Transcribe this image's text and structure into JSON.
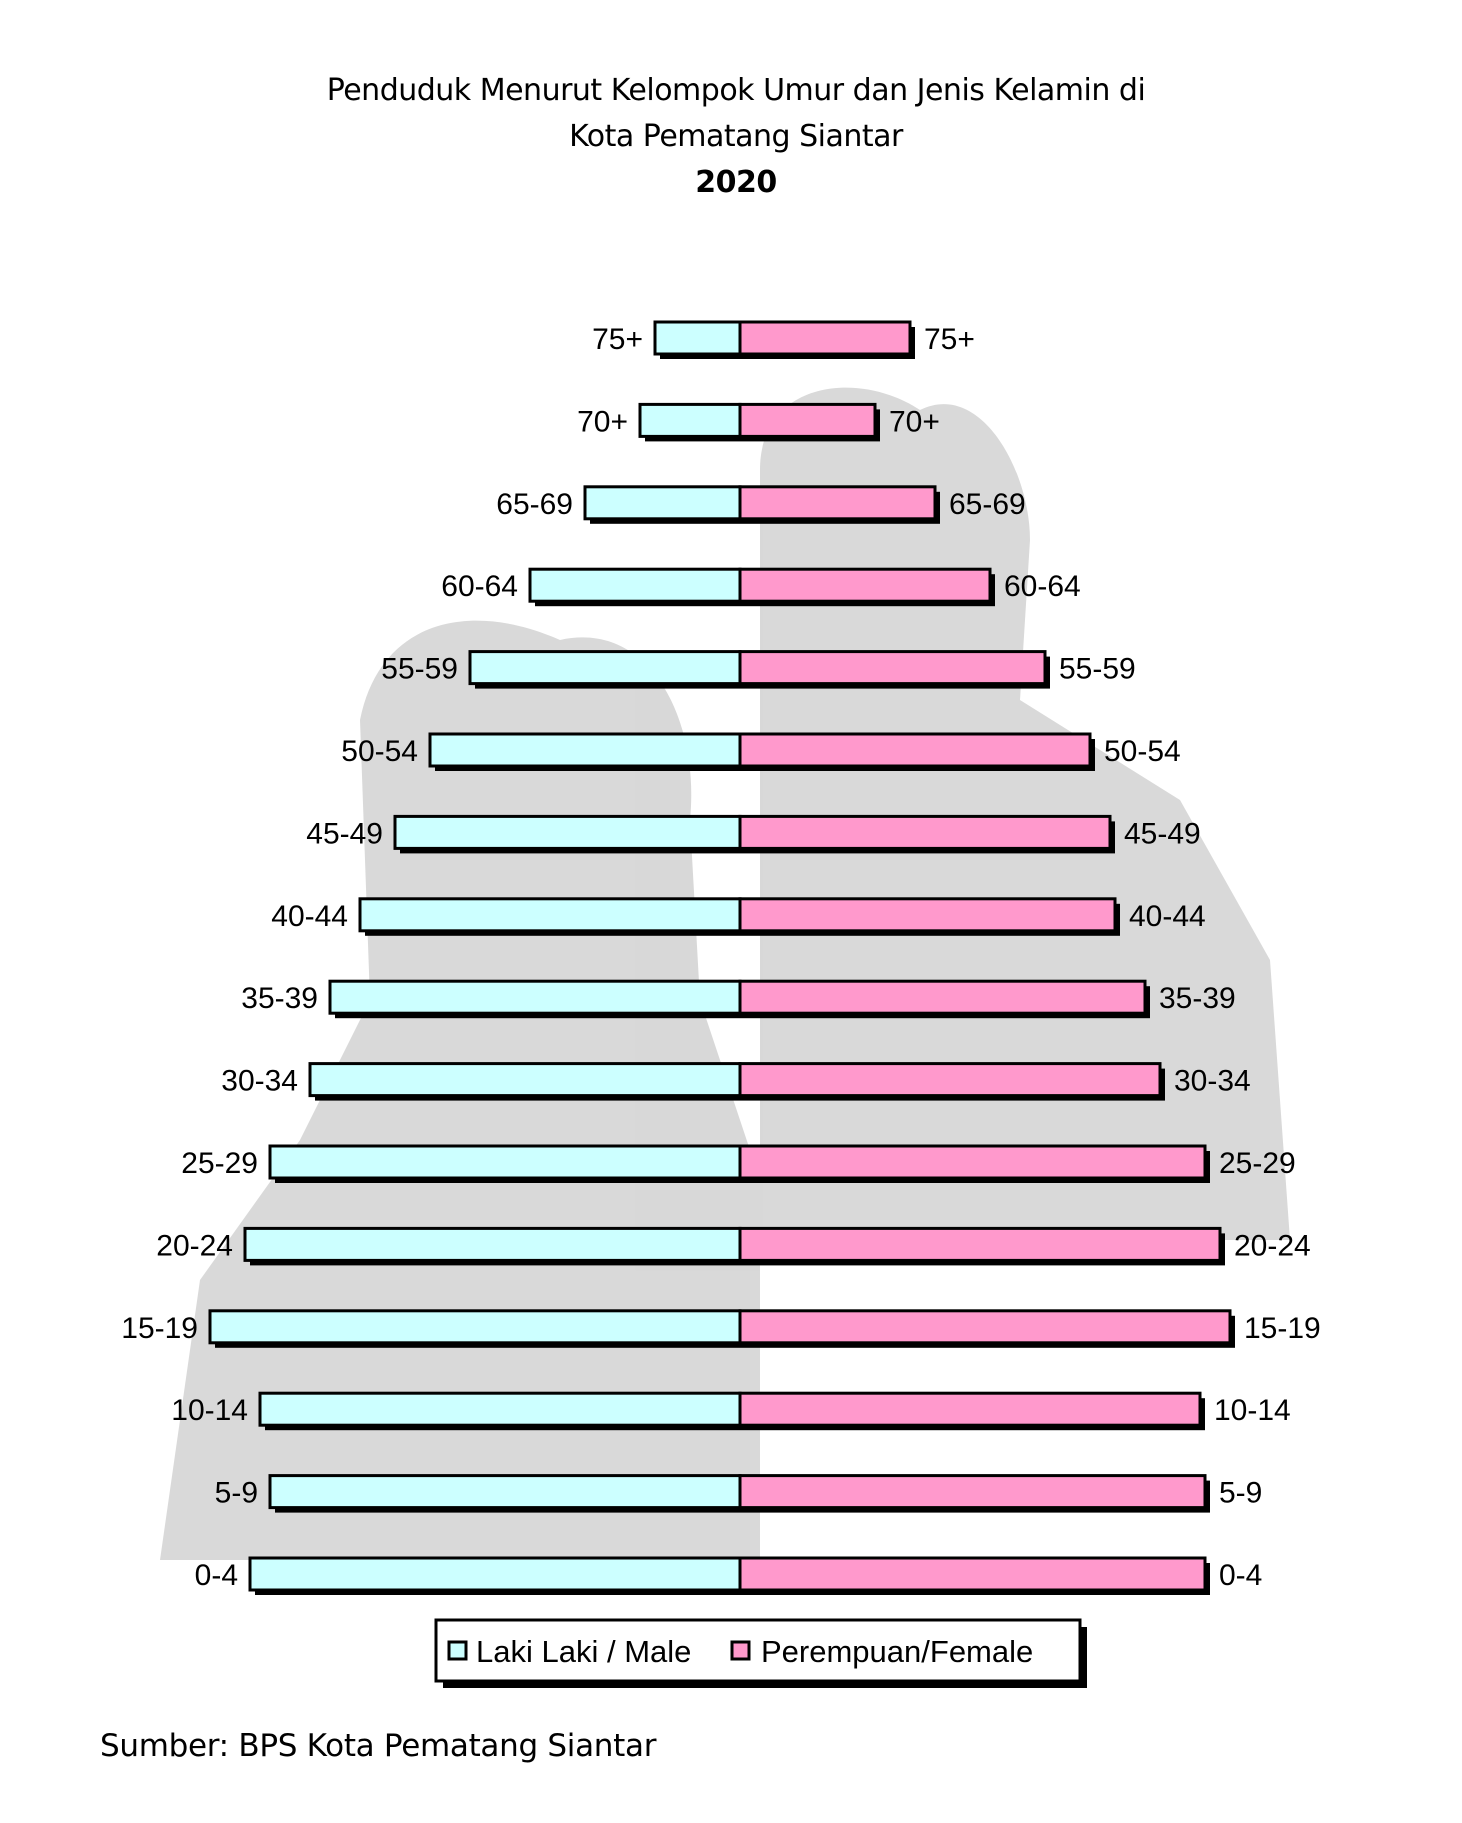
{
  "chart_data": {
    "type": "bar",
    "title_lines": [
      "Penduduk Menurut Kelompok Umur  dan Jenis Kelamin di",
      "Kota Pematang Siantar"
    ],
    "year": "2020",
    "categories": [
      "75+",
      "70+",
      "65-69",
      "60-64",
      "55-59",
      "50-54",
      "45-49",
      "40-44",
      "35-39",
      "30-34",
      "25-29",
      "20-24",
      "15-19",
      "10-14",
      "5-9",
      "0-4"
    ],
    "series": [
      {
        "name": "Laki Laki / Male",
        "color": "#ccffff",
        "values": [
          1.7,
          2.0,
          3.1,
          4.2,
          5.4,
          6.2,
          6.9,
          7.6,
          8.2,
          8.6,
          9.4,
          9.9,
          10.6,
          9.6,
          9.4,
          9.8
        ]
      },
      {
        "name": "Perempuan/Female",
        "color": "#ff99cc",
        "values": [
          3.4,
          2.7,
          3.9,
          5.0,
          6.1,
          7.0,
          7.4,
          7.5,
          8.1,
          8.4,
          9.3,
          9.6,
          9.8,
          9.2,
          9.3,
          9.3
        ]
      }
    ],
    "source": "Sumber: BPS Kota Pematang Siantar"
  }
}
